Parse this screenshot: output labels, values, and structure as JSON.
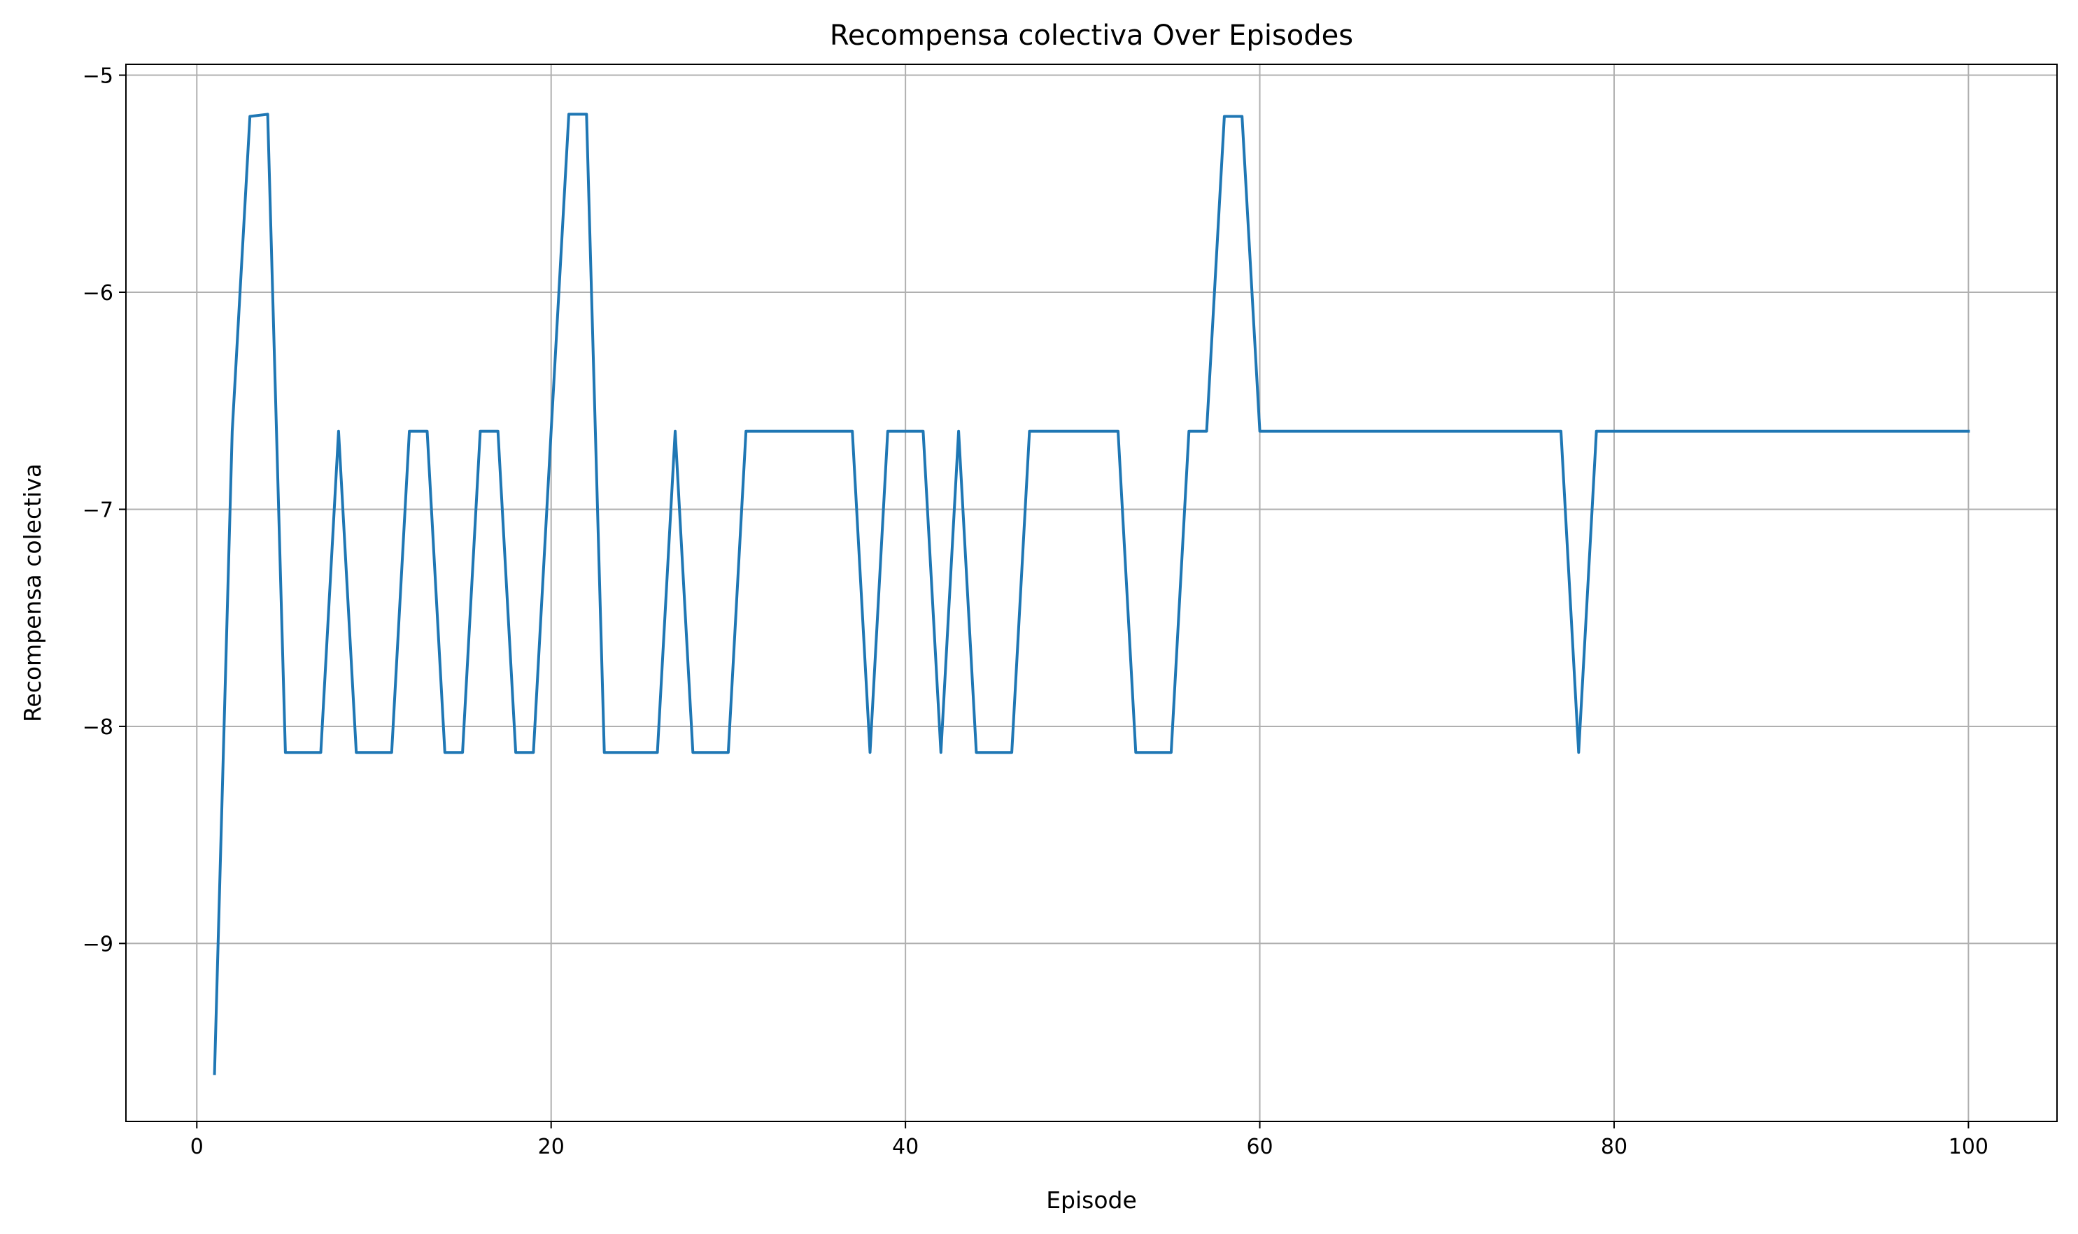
{
  "chart_data": {
    "type": "line",
    "title": "Recompensa colectiva Over Episodes",
    "xlabel": "Episode",
    "ylabel": "Recompensa colectiva",
    "xlim": [
      -4,
      105
    ],
    "ylim": [
      -9.82,
      -4.95
    ],
    "xticks": [
      0,
      20,
      40,
      60,
      80,
      100
    ],
    "yticks": [
      -9,
      -8,
      -7,
      -6,
      -5
    ],
    "grid": true,
    "legend": "none",
    "line_color": "#1f77b4",
    "grid_color": "#b0b0b0",
    "series": [
      {
        "x": [
          1,
          2,
          3,
          4,
          5,
          6,
          7,
          8,
          9,
          10,
          11,
          12,
          13,
          14,
          15,
          16,
          17,
          18,
          19,
          20,
          21,
          22,
          23,
          24,
          25,
          26,
          27,
          28,
          29,
          30,
          31,
          32,
          33,
          34,
          35,
          36,
          37,
          38,
          39,
          40,
          41,
          42,
          43,
          44,
          45,
          46,
          47,
          48,
          49,
          50,
          51,
          52,
          53,
          54,
          55,
          56,
          57,
          58,
          59,
          60,
          61,
          62,
          63,
          64,
          65,
          66,
          67,
          68,
          69,
          70,
          71,
          72,
          73,
          74,
          75,
          76,
          77,
          78,
          79,
          80,
          81,
          82,
          83,
          84,
          85,
          86,
          87,
          88,
          89,
          90,
          91,
          92,
          93,
          94,
          95,
          96,
          97,
          98,
          99,
          100
        ],
        "y": [
          -9.6,
          -6.64,
          -5.19,
          -5.18,
          -8.12,
          -8.12,
          -8.12,
          -6.64,
          -8.12,
          -8.12,
          -8.12,
          -6.64,
          -6.64,
          -8.12,
          -8.12,
          -6.64,
          -6.64,
          -8.12,
          -8.12,
          -6.64,
          -5.18,
          -5.18,
          -8.12,
          -8.12,
          -8.12,
          -8.12,
          -6.64,
          -8.12,
          -8.12,
          -8.12,
          -6.64,
          -6.64,
          -6.64,
          -6.64,
          -6.64,
          -6.64,
          -6.64,
          -8.12,
          -6.64,
          -6.64,
          -6.64,
          -8.12,
          -6.64,
          -8.12,
          -8.12,
          -8.12,
          -6.64,
          -6.64,
          -6.64,
          -6.64,
          -6.64,
          -6.64,
          -8.12,
          -8.12,
          -8.12,
          -6.64,
          -6.64,
          -5.19,
          -5.19,
          -6.64,
          -6.64,
          -6.64,
          -6.64,
          -6.64,
          -6.64,
          -6.64,
          -6.64,
          -6.64,
          -6.64,
          -6.64,
          -6.64,
          -6.64,
          -6.64,
          -6.64,
          -6.64,
          -6.64,
          -6.64,
          -8.12,
          -6.64,
          -6.64,
          -6.64,
          -6.64,
          -6.64,
          -6.64,
          -6.64,
          -6.64,
          -6.64,
          -6.64,
          -6.64,
          -6.64,
          -6.64,
          -6.64,
          -6.64,
          -6.64,
          -6.64,
          -6.64,
          -6.64,
          -6.64,
          -6.64,
          -6.64
        ]
      }
    ]
  }
}
